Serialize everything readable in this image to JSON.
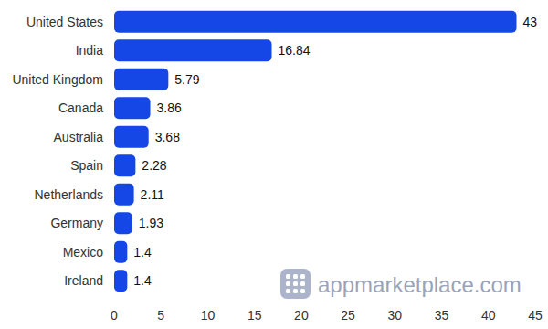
{
  "chart_data": {
    "type": "bar",
    "orientation": "horizontal",
    "categories": [
      "United States",
      "India",
      "United Kingdom",
      "Canada",
      "Australia",
      "Spain",
      "Netherlands",
      "Germany",
      "Mexico",
      "Ireland"
    ],
    "values": [
      43,
      16.84,
      5.79,
      3.86,
      3.68,
      2.28,
      2.11,
      1.93,
      1.4,
      1.4
    ],
    "color": "#1447e6",
    "xlim": [
      0,
      45
    ],
    "xticks": [
      0,
      5,
      10,
      15,
      20,
      25,
      30,
      35,
      40,
      45
    ],
    "data_labels": true,
    "grid": false,
    "annotations": [
      "appmarketplace.com"
    ]
  }
}
